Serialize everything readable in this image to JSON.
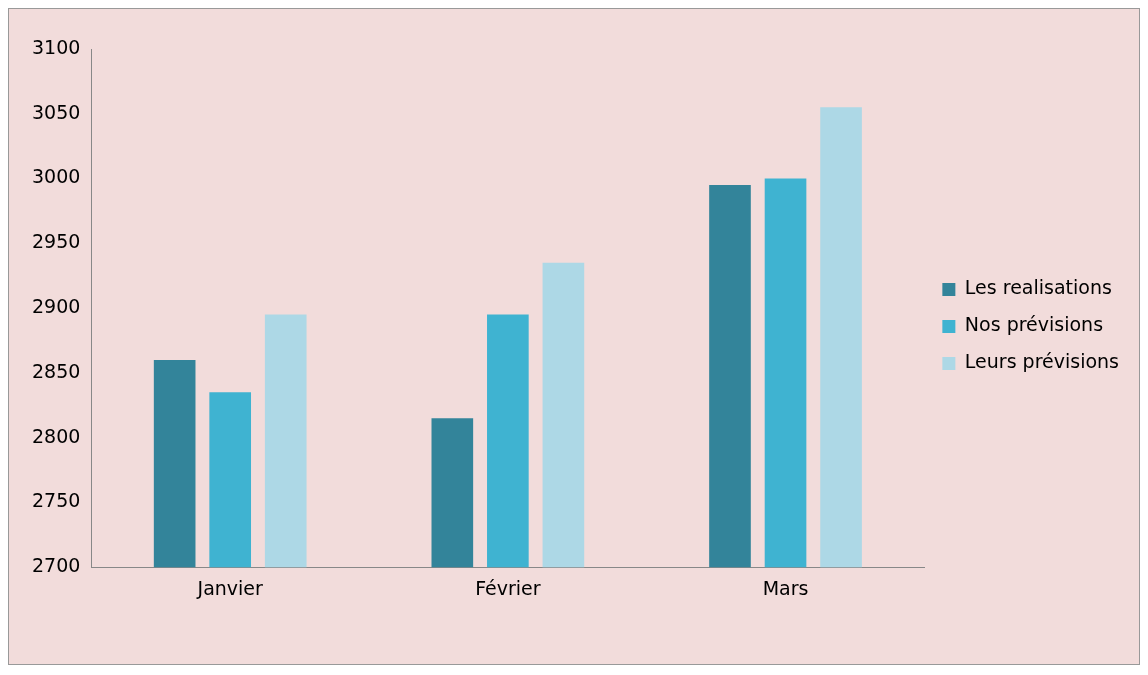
{
  "chart_data": {
    "type": "bar",
    "categories": [
      "Janvier",
      "Février",
      "Mars"
    ],
    "series": [
      {
        "name": "Les realisations",
        "color": "#33849a",
        "values": [
          2860,
          2815,
          2995
        ]
      },
      {
        "name": "Nos prévisions",
        "color": "#3fb3d1",
        "values": [
          2835,
          2895,
          3000
        ]
      },
      {
        "name": "Leurs prévisions",
        "color": "#add8e6",
        "values": [
          2895,
          2935,
          3055
        ]
      }
    ],
    "ylim": [
      2700,
      3100
    ],
    "yticks": [
      2700,
      2750,
      2800,
      2850,
      2900,
      2950,
      3000,
      3050,
      3100
    ],
    "grid": false,
    "legend": "right"
  }
}
